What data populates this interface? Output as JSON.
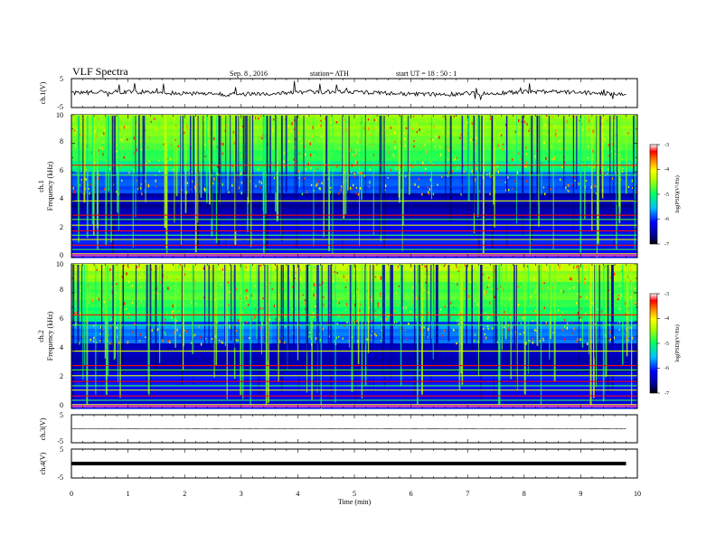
{
  "header": {
    "title": "VLF  Spectra",
    "date": "Sep. 8  , 2016",
    "station": "station= ATH",
    "start": "start  UT  =   18 : 50 : 1"
  },
  "chart_data": [
    {
      "type": "line",
      "panel": "ch1-waveform",
      "ylabel": "ch.1(V)",
      "ylim": [
        -5,
        5
      ],
      "yticks": [
        "5",
        "-5"
      ],
      "xlim": [
        0,
        10
      ],
      "trace_level": 0.0
    },
    {
      "type": "heatmap",
      "panel": "ch1-spectrogram",
      "ylabel_line1": "ch.1",
      "ylabel_line2": "Frequency  (kHz)",
      "ylim": [
        0,
        10
      ],
      "yticks": [
        "0",
        "2",
        "4",
        "6",
        "8",
        "10"
      ],
      "xlim": [
        0,
        10
      ],
      "colorbar": {
        "label": "log(PSD)(V²/Hz)",
        "range": [
          -7,
          -3
        ],
        "ticks": [
          "-3",
          "-4",
          "-5",
          "-6",
          "-7"
        ]
      }
    },
    {
      "type": "heatmap",
      "panel": "ch2-spectrogram",
      "ylabel_line1": "ch.2",
      "ylabel_line2": "Frequency  (kHz)",
      "ylim": [
        0,
        10
      ],
      "yticks": [
        "0",
        "2",
        "4",
        "6",
        "8",
        "10"
      ],
      "xlim": [
        0,
        10
      ],
      "colorbar": {
        "label": "log(PSD)(V²/Hz)",
        "range": [
          -7,
          -3
        ],
        "ticks": [
          "-3",
          "-4",
          "-5",
          "-6",
          "-7"
        ]
      }
    },
    {
      "type": "line",
      "panel": "ch3-waveform",
      "ylabel": "ch.3(V)",
      "ylim": [
        -5,
        5
      ],
      "yticks": [
        "5",
        "-5"
      ],
      "xlim": [
        0,
        10
      ],
      "trace_level": 0.0
    },
    {
      "type": "line",
      "panel": "ch4-waveform",
      "ylabel": "ch.4(V)",
      "ylim": [
        -5,
        5
      ],
      "yticks": [
        "5",
        "-5"
      ],
      "xlim": [
        0,
        10
      ],
      "trace_level": 0.0
    }
  ],
  "xaxis": {
    "label": "Time  (min)",
    "ticks": [
      "0",
      "1",
      "2",
      "3",
      "4",
      "5",
      "6",
      "7",
      "8",
      "9",
      "10"
    ]
  },
  "colors": {
    "axis": "#000000",
    "trace": "#000000",
    "background": "#ffffff"
  }
}
